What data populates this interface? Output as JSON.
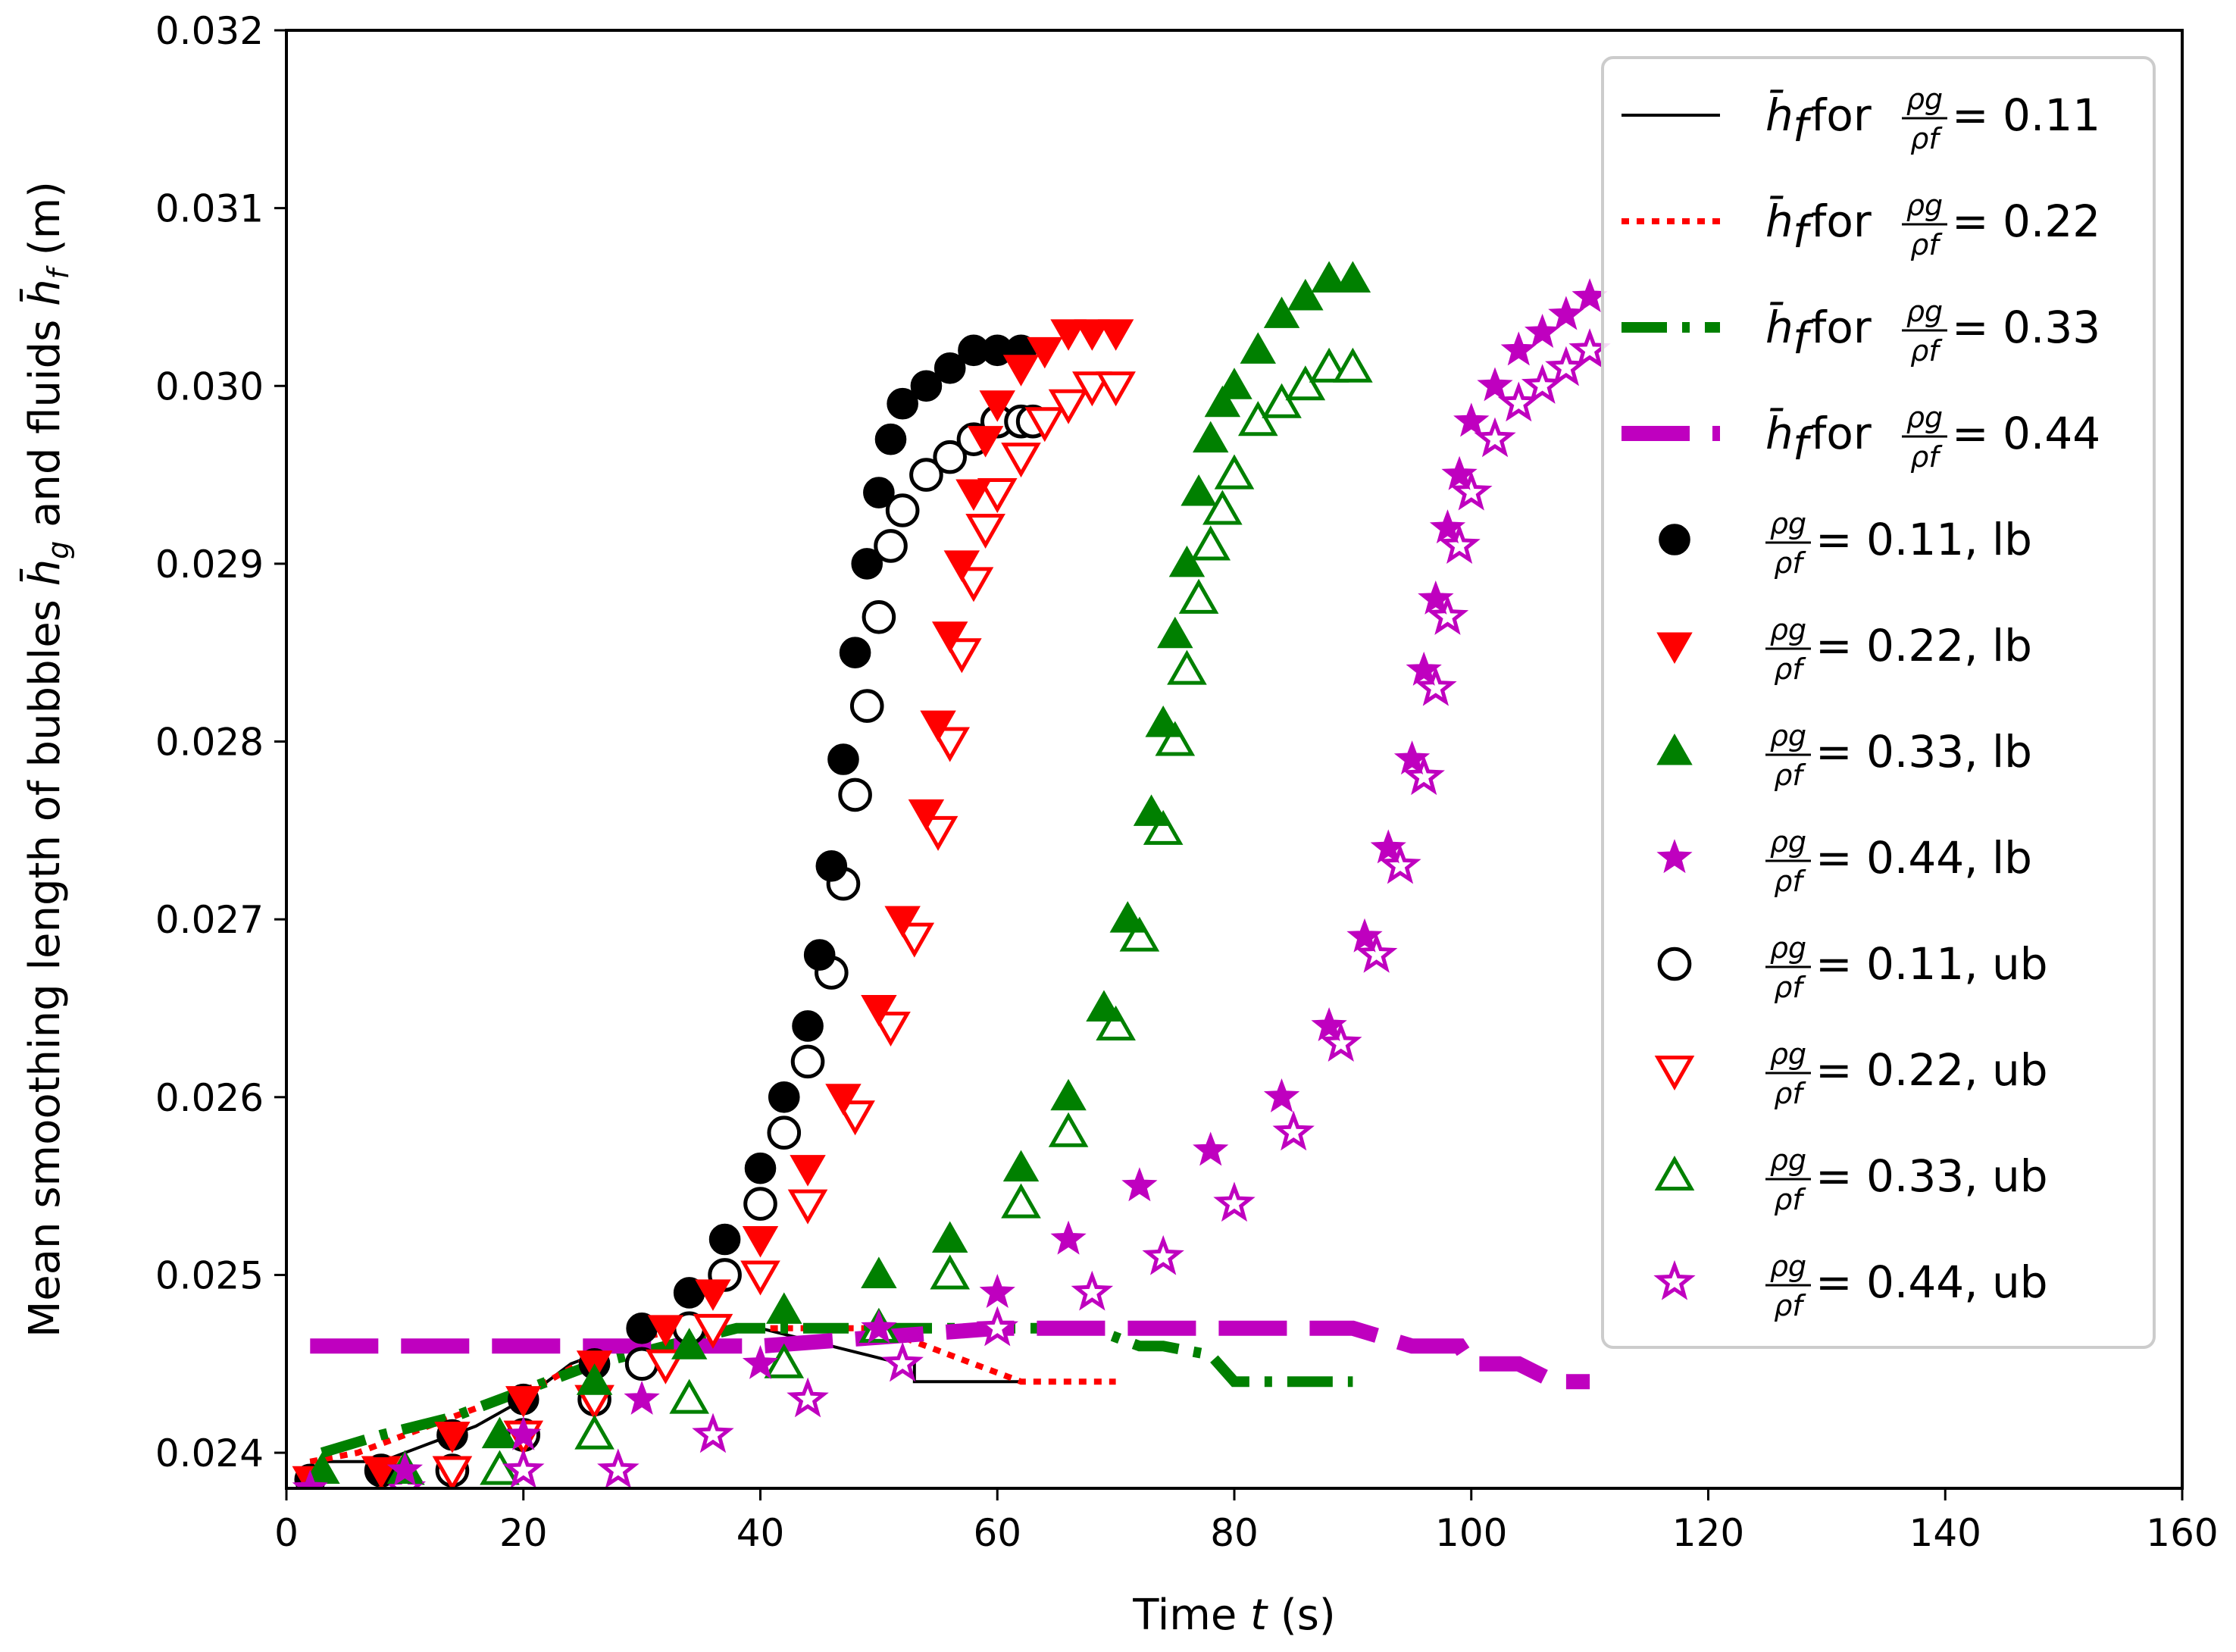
{
  "chart_data": {
    "type": "scatter",
    "xlabel_prefix": "Time ",
    "xlabel_var": "t",
    "xlabel_suffix": " (s)",
    "ylabel_prefix": "Mean smoothing length of bubbles ",
    "ylabel_hg": "h̄",
    "ylabel_hg_sub": "g",
    "ylabel_mid": " and fluids ",
    "ylabel_hf": "h̄",
    "ylabel_hf_sub": "f",
    "ylabel_suffix": " (m)",
    "xlim": [
      0,
      160
    ],
    "ylim": [
      0.0238,
      0.032
    ],
    "xticks": [
      "0",
      "20",
      "40",
      "60",
      "80",
      "100",
      "120",
      "140",
      "160"
    ],
    "yticks": [
      "0.024",
      "0.025",
      "0.026",
      "0.027",
      "0.028",
      "0.029",
      "0.030",
      "0.031",
      "0.032"
    ],
    "fluid_lines": [
      {
        "label_var": "h̄",
        "label_sub": "f",
        "label_for": " for ",
        "label_num": "ρg",
        "label_den": "ρf",
        "label_val": " = 0.11",
        "color": "#000000",
        "style": "solid",
        "x": [
          2,
          5,
          8,
          12,
          16,
          20,
          24,
          28,
          32,
          34,
          34,
          40,
          46,
          52,
          53,
          53,
          58,
          62
        ],
        "y": [
          0.02395,
          0.02395,
          0.02395,
          0.02405,
          0.02415,
          0.0243,
          0.0245,
          0.0246,
          0.0246,
          0.0246,
          0.0247,
          0.0247,
          0.0246,
          0.0245,
          0.0245,
          0.0244,
          0.0244,
          0.0244
        ]
      },
      {
        "label_var": "h̄",
        "label_sub": "f",
        "label_for": " for ",
        "label_num": "ρg",
        "label_den": "ρf",
        "label_val": " = 0.22",
        "color": "#ff0000",
        "style": "dotted",
        "x": [
          2,
          6,
          10,
          14,
          18,
          22,
          26,
          30,
          34,
          38,
          42,
          46,
          50,
          54,
          58,
          62,
          66,
          70
        ],
        "y": [
          0.02395,
          0.024,
          0.0241,
          0.0242,
          0.0243,
          0.0244,
          0.02455,
          0.02465,
          0.0247,
          0.0247,
          0.0247,
          0.0247,
          0.0247,
          0.0246,
          0.0245,
          0.0244,
          0.0244,
          0.0244
        ]
      },
      {
        "label_var": "h̄",
        "label_sub": "f",
        "label_for": " for ",
        "label_num": "ρg",
        "label_den": "ρf",
        "label_val": " = 0.33",
        "color": "#008000",
        "style": "dashdot",
        "x": [
          3,
          8,
          14,
          20,
          26,
          32,
          38,
          44,
          50,
          56,
          62,
          68,
          72,
          74,
          78,
          80,
          84,
          88,
          90
        ],
        "y": [
          0.024,
          0.0241,
          0.0242,
          0.02435,
          0.0245,
          0.0246,
          0.0247,
          0.0247,
          0.0247,
          0.0247,
          0.0247,
          0.0247,
          0.0246,
          0.0246,
          0.02455,
          0.0244,
          0.0244,
          0.0244,
          0.0244
        ]
      },
      {
        "label_var": "h̄",
        "label_sub": "f",
        "label_for": " for ",
        "label_num": "ρg",
        "label_den": "ρf",
        "label_val": " = 0.44",
        "color": "#bf00bf",
        "style": "dashed",
        "x": [
          2,
          10,
          20,
          30,
          40,
          50,
          60,
          70,
          80,
          86,
          90,
          95,
          99,
          100,
          104,
          107,
          110
        ],
        "y": [
          0.0246,
          0.0246,
          0.0246,
          0.0246,
          0.0246,
          0.02465,
          0.0247,
          0.0247,
          0.0247,
          0.0247,
          0.0247,
          0.0246,
          0.0246,
          0.0245,
          0.0245,
          0.0244,
          0.0244
        ]
      }
    ],
    "bubble_series": [
      {
        "label_num": "ρg",
        "label_den": "ρf",
        "label_val": " = 0.11, lb",
        "color": "#000000",
        "marker": "circle",
        "filled": true,
        "x": [
          2,
          8,
          14,
          20,
          26,
          30,
          34,
          37,
          40,
          42,
          44,
          45,
          46,
          47,
          48,
          49,
          50,
          51,
          52,
          54,
          56,
          58,
          60,
          62
        ],
        "y": [
          0.02385,
          0.0239,
          0.0241,
          0.0243,
          0.0245,
          0.0247,
          0.0249,
          0.0252,
          0.0256,
          0.026,
          0.0264,
          0.0268,
          0.0273,
          0.0279,
          0.0285,
          0.029,
          0.0294,
          0.0297,
          0.0299,
          0.03,
          0.0301,
          0.0302,
          0.0302,
          0.0302
        ]
      },
      {
        "label_num": "ρg",
        "label_den": "ρf",
        "label_val": " = 0.22, lb",
        "color": "#ff0000",
        "marker": "triangle-down",
        "filled": true,
        "x": [
          2,
          8,
          14,
          20,
          26,
          32,
          36,
          40,
          44,
          47,
          50,
          52,
          54,
          55,
          56,
          57,
          58,
          59,
          60,
          62,
          64,
          66,
          68,
          70
        ],
        "y": [
          0.02385,
          0.0239,
          0.0241,
          0.0243,
          0.0245,
          0.0247,
          0.0249,
          0.0252,
          0.0256,
          0.026,
          0.0265,
          0.027,
          0.0276,
          0.0281,
          0.0286,
          0.029,
          0.0294,
          0.0297,
          0.0299,
          0.0301,
          0.0302,
          0.0303,
          0.0303,
          0.0303
        ]
      },
      {
        "label_num": "ρg",
        "label_den": "ρf",
        "label_val": " = 0.33, lb",
        "color": "#008000",
        "marker": "triangle-up",
        "filled": true,
        "x": [
          3,
          10,
          18,
          26,
          34,
          42,
          50,
          56,
          62,
          66,
          69,
          71,
          73,
          74,
          75,
          76,
          77,
          78,
          79,
          80,
          82,
          84,
          86,
          88,
          90
        ],
        "y": [
          0.0239,
          0.0239,
          0.0241,
          0.0244,
          0.0246,
          0.0248,
          0.025,
          0.0252,
          0.0256,
          0.026,
          0.0265,
          0.027,
          0.0276,
          0.0281,
          0.0286,
          0.029,
          0.0294,
          0.0297,
          0.0299,
          0.03,
          0.0302,
          0.0304,
          0.0305,
          0.0306,
          0.0306
        ]
      },
      {
        "label_num": "ρg",
        "label_den": "ρf",
        "label_val": " = 0.44, lb",
        "color": "#bf00bf",
        "marker": "star",
        "filled": true,
        "x": [
          2,
          10,
          20,
          30,
          40,
          50,
          60,
          66,
          72,
          78,
          84,
          88,
          91,
          93,
          95,
          96,
          97,
          98,
          99,
          100,
          102,
          104,
          106,
          108,
          110
        ],
        "y": [
          0.0238,
          0.0239,
          0.0241,
          0.0243,
          0.0245,
          0.0247,
          0.0249,
          0.0252,
          0.0255,
          0.0257,
          0.026,
          0.0264,
          0.0269,
          0.0274,
          0.0279,
          0.0284,
          0.0288,
          0.0292,
          0.0295,
          0.0298,
          0.03,
          0.0302,
          0.0303,
          0.0304,
          0.0305
        ]
      },
      {
        "label_num": "ρg",
        "label_den": "ρf",
        "label_val": " = 0.11, ub",
        "color": "#000000",
        "marker": "circle",
        "filled": false,
        "x": [
          8,
          14,
          20,
          26,
          30,
          34,
          37,
          40,
          42,
          44,
          46,
          47,
          48,
          49,
          50,
          51,
          52,
          54,
          56,
          58,
          60,
          62,
          63
        ],
        "y": [
          0.0239,
          0.0239,
          0.0241,
          0.0243,
          0.0245,
          0.0247,
          0.025,
          0.0254,
          0.0258,
          0.0262,
          0.0267,
          0.0272,
          0.0277,
          0.0282,
          0.0287,
          0.0291,
          0.0293,
          0.0295,
          0.0296,
          0.0297,
          0.0298,
          0.0298,
          0.0298
        ]
      },
      {
        "label_num": "ρg",
        "label_den": "ρf",
        "label_val": " = 0.22, ub",
        "color": "#ff0000",
        "marker": "triangle-down",
        "filled": false,
        "x": [
          8,
          14,
          20,
          26,
          32,
          36,
          40,
          44,
          48,
          51,
          53,
          55,
          56,
          57,
          58,
          59,
          60,
          62,
          64,
          66,
          68,
          70
        ],
        "y": [
          0.0239,
          0.0239,
          0.0241,
          0.0243,
          0.0245,
          0.0247,
          0.025,
          0.0254,
          0.0259,
          0.0264,
          0.0269,
          0.0275,
          0.028,
          0.0285,
          0.0289,
          0.0292,
          0.0294,
          0.0296,
          0.0298,
          0.0299,
          0.03,
          0.03
        ]
      },
      {
        "label_num": "ρg",
        "label_den": "ρf",
        "label_val": " = 0.33, ub",
        "color": "#008000",
        "marker": "triangle-up",
        "filled": false,
        "x": [
          10,
          18,
          26,
          34,
          42,
          50,
          56,
          62,
          66,
          70,
          72,
          74,
          75,
          76,
          77,
          78,
          79,
          80,
          82,
          84,
          86,
          88,
          90
        ],
        "y": [
          0.0239,
          0.0239,
          0.0241,
          0.0243,
          0.0245,
          0.0247,
          0.025,
          0.0254,
          0.0258,
          0.0264,
          0.0269,
          0.0275,
          0.028,
          0.0284,
          0.0288,
          0.0291,
          0.0293,
          0.0295,
          0.0298,
          0.0299,
          0.03,
          0.0301,
          0.0301
        ]
      },
      {
        "label_num": "ρg",
        "label_den": "ρf",
        "label_val": " = 0.44, ub",
        "color": "#bf00bf",
        "marker": "star",
        "filled": false,
        "x": [
          10,
          20,
          28,
          36,
          44,
          52,
          60,
          68,
          74,
          80,
          85,
          89,
          92,
          94,
          96,
          97,
          98,
          99,
          100,
          102,
          104,
          106,
          108,
          110
        ],
        "y": [
          0.0238,
          0.0239,
          0.0239,
          0.0241,
          0.0243,
          0.0245,
          0.0247,
          0.0249,
          0.0251,
          0.0254,
          0.0258,
          0.0263,
          0.0268,
          0.0273,
          0.0278,
          0.0283,
          0.0287,
          0.0291,
          0.0294,
          0.0297,
          0.0299,
          0.03,
          0.0301,
          0.0302
        ]
      }
    ]
  }
}
